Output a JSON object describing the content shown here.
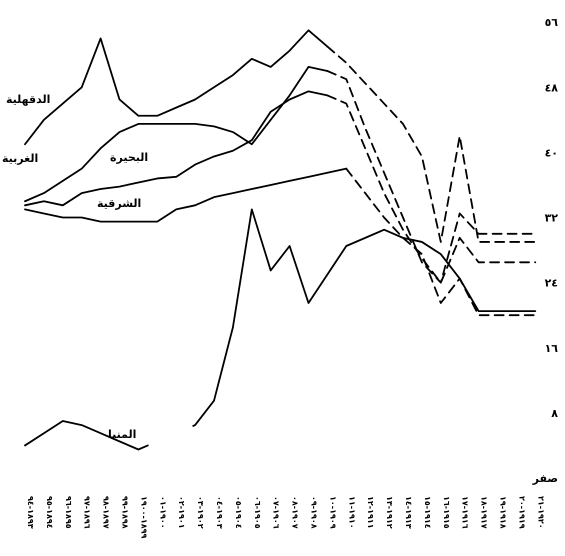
{
  "chart_data": {
    "type": "line",
    "ylim": [
      0,
      56
    ],
    "yticks": [
      {
        "value": 0,
        "label": "صفر"
      },
      {
        "value": 8,
        "label": "٨"
      },
      {
        "value": 16,
        "label": "١٦"
      },
      {
        "value": 24,
        "label": "٢٤"
      },
      {
        "value": 32,
        "label": "٣٢"
      },
      {
        "value": 40,
        "label": "٤٠"
      },
      {
        "value": 48,
        "label": "٤٨"
      },
      {
        "value": 56,
        "label": "٥٦"
      }
    ],
    "categories": [
      "١٨٩٣-٩٤",
      "١٨٩٤-٩٥",
      "١٨٩٥-٩٦",
      "١٨٩٦-٩٧",
      "١٨٩٧-٩٨",
      "١٨٩٨-٩٩",
      "١٨٩٩-١٩٠٠",
      "١٩٠٠-٠١",
      "١٩٠١-٠٢",
      "١٩٠٢-٠٣",
      "١٩٠٣-٠٤",
      "١٩٠٤-٠٥",
      "١٩٠٥-٠٦",
      "١٩٠٦-٠٧",
      "١٩٠٧-٠٨",
      "١٩٠٨-٠٩",
      "١٩٠٩-١٠",
      "١٩١٠-١١",
      "١٩١١-١٢",
      "١٩١٢-١٣",
      "١٩١٣-١٤",
      "١٩١٤-١٥",
      "١٩١٥-١٦",
      "١٩١٦-١٧",
      "١٩١٧-١٨",
      "١٩١٨-١٩",
      "١٩١٩-٢٠",
      "١٩٢٠-٢١"
    ],
    "series": [
      {
        "name": "الدقهلية",
        "values": [
          41,
          44,
          46,
          48,
          54,
          46.5,
          44.5,
          44.5,
          45.5,
          46.5,
          48,
          49.5,
          51.5,
          50.5,
          52.5,
          55,
          53,
          51,
          48.5,
          46,
          43.5,
          39.5,
          29,
          42,
          29,
          29,
          29,
          29
        ],
        "dashed_from_index": 16,
        "gaps": []
      },
      {
        "name": "الغربية",
        "values": [
          34,
          35,
          36.5,
          38,
          40.5,
          42.5,
          43.5,
          43.5,
          43.5,
          43.5,
          43.2,
          42.5,
          41,
          44,
          47,
          50.5,
          50,
          49,
          43,
          37.5,
          32,
          26.5,
          24,
          32.5,
          30,
          30,
          30,
          30
        ],
        "dashed_from_index": 16,
        "gaps": []
      },
      {
        "name": "البحيرة",
        "values": [
          33.5,
          34,
          33.5,
          35,
          35.5,
          35.8,
          36.3,
          36.8,
          37,
          38.5,
          39.5,
          40.2,
          41.5,
          45,
          46.5,
          47.5,
          47,
          46,
          40.5,
          35,
          30.5,
          27,
          24,
          29.5,
          26.5,
          26.5,
          26.5,
          26.5
        ],
        "dashed_from_index": 16,
        "gaps": []
      },
      {
        "name": "الشرقية",
        "values": [
          33,
          32.5,
          32,
          32,
          31.5,
          31.5,
          31.5,
          31.5,
          33,
          33.5,
          34.5,
          35,
          35.5,
          36,
          36.5,
          37,
          37.5,
          38,
          35,
          32,
          29.5,
          27.5,
          21.5,
          24.5,
          20,
          20,
          20,
          20
        ],
        "dashed_from_index": 17,
        "gaps": []
      },
      {
        "name": "المنيا",
        "values": [
          4,
          5.5,
          7,
          6.5,
          5.5,
          4.5,
          3.5,
          4.5,
          5.5,
          6.5,
          9.5,
          18.5,
          33,
          25.5,
          28.5,
          21.5,
          25,
          28.5,
          29.5,
          30.5,
          29.5,
          29,
          27.5,
          24.5,
          20.5,
          20.5,
          20.5,
          20.5
        ],
        "dashed_from_index": null,
        "gaps": [
          [
            6.5,
            8.9
          ]
        ]
      }
    ]
  }
}
